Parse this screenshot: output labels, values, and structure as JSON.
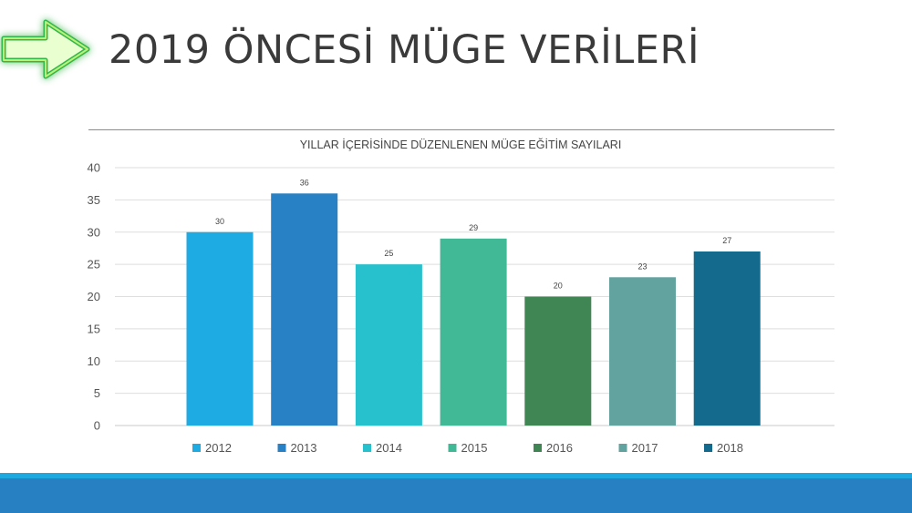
{
  "slide": {
    "title": "2019 ÖNCESİ MÜGE VERİLERİ",
    "decoration_icon": "glowing-green-arrow-right"
  },
  "chart_data": {
    "type": "bar",
    "title": "YILLAR İÇERİSİNDE DÜZENLENEN MÜGE EĞİTİM SAYILARI",
    "xlabel": "",
    "ylabel": "",
    "categories": [
      "2012",
      "2013",
      "2014",
      "2015",
      "2016",
      "2017",
      "2018"
    ],
    "values": [
      30,
      36,
      25,
      29,
      20,
      23,
      27
    ],
    "colors": [
      "#1eaae2",
      "#2781c4",
      "#27c0cd",
      "#42b996",
      "#3f8654",
      "#62a39f",
      "#146a8c"
    ],
    "ylim": [
      0,
      40
    ],
    "yticks": [
      0,
      5,
      10,
      15,
      20,
      25,
      30,
      35,
      40
    ],
    "grid": true,
    "legend": "bottom",
    "data_labels": true
  },
  "colors": {
    "footer_bar": "#2680c2",
    "footer_line": "#1ea8e0",
    "title_text": "#3a3a3a"
  }
}
